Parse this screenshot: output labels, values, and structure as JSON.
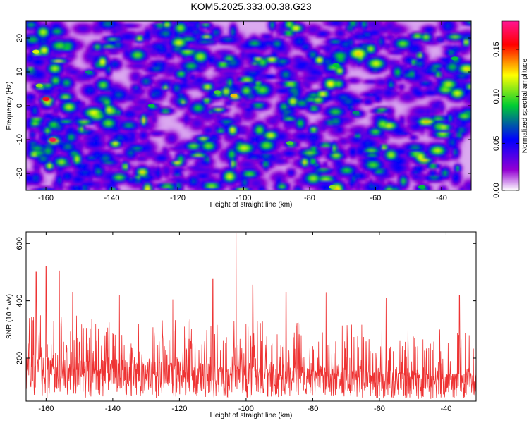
{
  "title": "KOM5.2025.333.00.38.G23",
  "chart_data": [
    {
      "type": "heatmap",
      "xlabel": "Height of straight line (km)",
      "ylabel": "Frequency (Hz)",
      "xlim": [
        -166,
        -31
      ],
      "ylim": [
        -25,
        25
      ],
      "xticks": [
        -160,
        -140,
        -120,
        -100,
        -80,
        -60,
        -40
      ],
      "yticks": [
        -20,
        -10,
        0,
        10,
        20
      ],
      "colorbar": {
        "label": "Normalized spectral amplitude",
        "range": [
          0.0,
          0.18
        ],
        "ticks": [
          0.0,
          0.05,
          0.1,
          0.15
        ],
        "tick_labels": [
          "0.00",
          "0.05",
          "0.10",
          "0.15"
        ],
        "colors": [
          "#ffffff",
          "#9400d3",
          "#0000ff",
          "#00cc33",
          "#ffff00",
          "#ff0000",
          "#ff1493"
        ]
      },
      "hotspots": [
        {
          "x": -158,
          "y": -10,
          "v": 0.17
        },
        {
          "x": -160,
          "y": 2,
          "v": 0.16
        },
        {
          "x": -163,
          "y": 16,
          "v": 0.12
        },
        {
          "x": -162,
          "y": 6,
          "v": 0.11
        },
        {
          "x": -103,
          "y": 3,
          "v": 0.13
        },
        {
          "x": -108,
          "y": 4,
          "v": 0.1
        },
        {
          "x": -73,
          "y": -24,
          "v": 0.11
        },
        {
          "x": -72,
          "y": 12,
          "v": 0.09
        },
        {
          "x": -86,
          "y": -11,
          "v": 0.1
        },
        {
          "x": -128,
          "y": 0,
          "v": 0.09
        },
        {
          "x": -46,
          "y": -24,
          "v": 0.09
        },
        {
          "x": -36,
          "y": 14,
          "v": 0.09
        },
        {
          "x": -66,
          "y": -2,
          "v": 0.08
        },
        {
          "x": -147,
          "y": 10,
          "v": 0.08
        }
      ]
    },
    {
      "type": "line",
      "xlabel": "Height of straight line (km)",
      "ylabel": "SNR (10 * v/v)",
      "xlim": [
        -166,
        -31
      ],
      "ylim": [
        50,
        640
      ],
      "xticks": [
        -160,
        -140,
        -120,
        -100,
        -80,
        -60,
        -40
      ],
      "yticks": [
        200,
        400,
        600
      ],
      "series": [
        {
          "name": "SNR",
          "color": "#ee3333",
          "peaks": [
            {
              "x": -163,
              "y": 500
            },
            {
              "x": -160,
              "y": 520
            },
            {
              "x": -156,
              "y": 505
            },
            {
              "x": -152,
              "y": 430
            },
            {
              "x": -138,
              "y": 420
            },
            {
              "x": -122,
              "y": 405
            },
            {
              "x": -110,
              "y": 475
            },
            {
              "x": -103,
              "y": 635
            },
            {
              "x": -98,
              "y": 455
            },
            {
              "x": -88,
              "y": 430
            },
            {
              "x": -76,
              "y": 430
            },
            {
              "x": -58,
              "y": 410
            },
            {
              "x": -36,
              "y": 420
            }
          ]
        }
      ]
    }
  ]
}
